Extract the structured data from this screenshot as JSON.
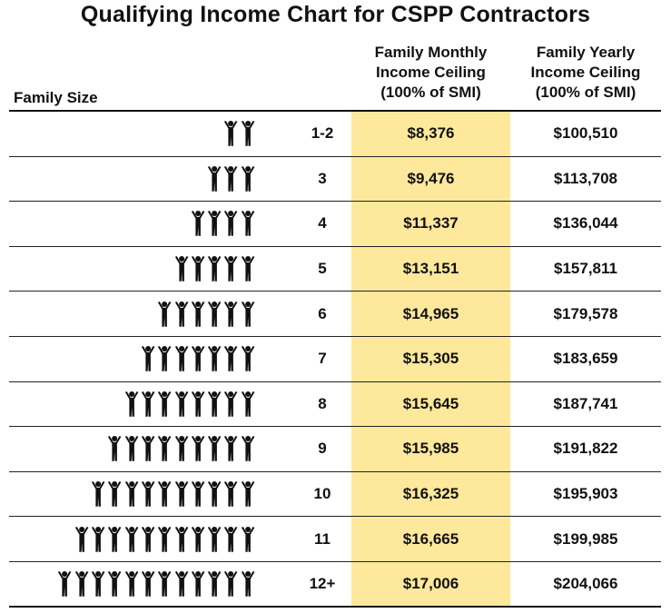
{
  "title": "Qualifying Income Chart for CSPP Contractors",
  "headers": {
    "family_size": "Family Size",
    "monthly": [
      "Family Monthly",
      "Income Ceiling",
      "(100% of SMI)"
    ],
    "yearly": [
      "Family Yearly",
      "Income Ceiling",
      "(100% of SMI)"
    ]
  },
  "colors": {
    "highlight": "#fde89c",
    "text": "#111111"
  },
  "icon": "person-arms-raised-icon",
  "rows": [
    {
      "size": "1-2",
      "monthly": "$8,376",
      "yearly": "$100,510",
      "people": 2
    },
    {
      "size": "3",
      "monthly": "$9,476",
      "yearly": "$113,708",
      "people": 3
    },
    {
      "size": "4",
      "monthly": "$11,337",
      "yearly": "$136,044",
      "people": 4
    },
    {
      "size": "5",
      "monthly": "$13,151",
      "yearly": "$157,811",
      "people": 5
    },
    {
      "size": "6",
      "monthly": "$14,965",
      "yearly": "$179,578",
      "people": 6
    },
    {
      "size": "7",
      "monthly": "$15,305",
      "yearly": "$183,659",
      "people": 7
    },
    {
      "size": "8",
      "monthly": "$15,645",
      "yearly": "$187,741",
      "people": 8
    },
    {
      "size": "9",
      "monthly": "$15,985",
      "yearly": "$191,822",
      "people": 9
    },
    {
      "size": "10",
      "monthly": "$16,325",
      "yearly": "$195,903",
      "people": 10
    },
    {
      "size": "11",
      "monthly": "$16,665",
      "yearly": "$199,985",
      "people": 11
    },
    {
      "size": "12+",
      "monthly": "$17,006",
      "yearly": "$204,066",
      "people": 12
    }
  ]
}
